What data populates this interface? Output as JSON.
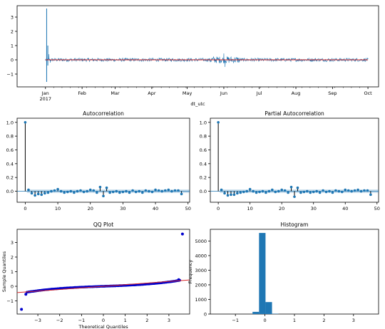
{
  "chart_data": [
    {
      "id": "timeseries",
      "type": "line",
      "title": "",
      "xlabel": "dt_utc",
      "ylabel": "",
      "ylim": [
        -1.9,
        3.8
      ],
      "yticks": [
        -1,
        0,
        1,
        2,
        3
      ],
      "xticks": [
        {
          "label": "Jan\n2017",
          "x": "2017-01-01"
        },
        {
          "label": "Feb",
          "x": "2017-02-01"
        },
        {
          "label": "Mar",
          "x": "2017-03-01"
        },
        {
          "label": "Apr",
          "x": "2017-04-01"
        },
        {
          "label": "May",
          "x": "2017-05-01"
        },
        {
          "label": "Jun",
          "x": "2017-06-01"
        },
        {
          "label": "Jul",
          "x": "2017-07-01"
        },
        {
          "label": "Aug",
          "x": "2017-08-01"
        },
        {
          "label": "Sep",
          "x": "2017-09-01"
        },
        {
          "label": "Oct",
          "x": "2017-10-01"
        }
      ],
      "xlim": [
        "2016-12-08",
        "2017-10-10"
      ],
      "series": [
        {
          "color": "#1f77b4",
          "description": "residual series, near 0 with spikes",
          "points": [
            {
              "x": "2017-01-01",
              "y": 0.0
            },
            {
              "x": "2017-01-02",
              "y": 3.6
            },
            {
              "x": "2017-01-02",
              "y": -1.55
            },
            {
              "x": "2017-01-03",
              "y": 1.0
            },
            {
              "x": "2017-01-03",
              "y": -0.4
            },
            {
              "x": "2017-01-04",
              "y": 0.4
            },
            {
              "x": "2017-01-05",
              "y": -0.2
            },
            {
              "x": "2017-06-01",
              "y": 0.45
            },
            {
              "x": "2017-06-02",
              "y": -0.5
            },
            {
              "x": "2017-10-01",
              "y": 0.05
            }
          ],
          "noise_amplitude": 0.12
        },
        {
          "color": "#d62728",
          "description": "rolling mean, ~0",
          "y": 0.0
        }
      ]
    },
    {
      "id": "acf",
      "type": "stem",
      "title": "Autocorrelation",
      "xlim": [
        -2.5,
        50.5
      ],
      "ylim": [
        -0.16,
        1.06
      ],
      "xticks": [
        0,
        10,
        20,
        30,
        40,
        50
      ],
      "yticks": [
        0.0,
        0.2,
        0.4,
        0.6,
        0.8,
        1.0
      ],
      "lags": [
        0,
        1,
        2,
        3,
        4,
        5,
        6,
        7,
        8,
        9,
        10,
        11,
        12,
        13,
        14,
        15,
        16,
        17,
        18,
        19,
        20,
        21,
        22,
        23,
        24,
        25,
        26,
        27,
        28,
        29,
        30,
        31,
        32,
        33,
        34,
        35,
        36,
        37,
        38,
        39,
        40,
        41,
        42,
        43,
        44,
        45,
        46,
        47,
        48
      ],
      "values": [
        1.0,
        0.02,
        -0.03,
        -0.06,
        -0.04,
        -0.05,
        -0.03,
        -0.02,
        0.0,
        0.01,
        0.03,
        0.0,
        -0.02,
        -0.01,
        0.0,
        -0.02,
        0.0,
        0.01,
        -0.01,
        0.0,
        0.02,
        0.01,
        -0.02,
        0.06,
        -0.07,
        0.05,
        -0.02,
        -0.01,
        0.0,
        -0.02,
        -0.01,
        0.0,
        -0.02,
        0.01,
        -0.01,
        0.0,
        -0.02,
        0.01,
        0.0,
        -0.01,
        0.02,
        0.01,
        0.0,
        0.01,
        0.02,
        0.0,
        0.01,
        0.01,
        -0.04
      ],
      "conf_band": 0.025
    },
    {
      "id": "pacf",
      "type": "stem",
      "title": "Partial Autocorrelation",
      "xlim": [
        -2.5,
        50.5
      ],
      "ylim": [
        -0.16,
        1.06
      ],
      "xticks": [
        0,
        10,
        20,
        30,
        40,
        50
      ],
      "yticks": [
        0.0,
        0.2,
        0.4,
        0.6,
        0.8,
        1.0
      ],
      "lags": [
        0,
        1,
        2,
        3,
        4,
        5,
        6,
        7,
        8,
        9,
        10,
        11,
        12,
        13,
        14,
        15,
        16,
        17,
        18,
        19,
        20,
        21,
        22,
        23,
        24,
        25,
        26,
        27,
        28,
        29,
        30,
        31,
        32,
        33,
        34,
        35,
        36,
        37,
        38,
        39,
        40,
        41,
        42,
        43,
        44,
        45,
        46,
        47,
        48
      ],
      "values": [
        1.0,
        0.02,
        -0.03,
        -0.06,
        -0.05,
        -0.05,
        -0.03,
        -0.02,
        -0.01,
        0.0,
        0.03,
        0.0,
        -0.02,
        -0.01,
        0.0,
        -0.02,
        0.0,
        0.02,
        -0.01,
        0.0,
        0.02,
        0.01,
        -0.02,
        0.06,
        -0.08,
        0.05,
        -0.02,
        -0.01,
        0.0,
        -0.02,
        -0.01,
        0.0,
        -0.02,
        0.01,
        -0.01,
        0.0,
        -0.02,
        0.01,
        0.0,
        -0.01,
        0.02,
        0.01,
        0.0,
        0.01,
        0.02,
        0.0,
        0.01,
        0.01,
        -0.05
      ],
      "conf_band": 0.025
    },
    {
      "id": "qq",
      "type": "scatter",
      "title": "QQ Plot",
      "xlabel": "Theoretical Quantiles",
      "ylabel": "Sample Quantiles",
      "xlim": [
        -3.95,
        3.95
      ],
      "ylim": [
        -1.9,
        3.9
      ],
      "xticks": [
        -3,
        -2,
        -1,
        0,
        1,
        2,
        3
      ],
      "yticks": [
        -1,
        0,
        1,
        2,
        3
      ],
      "outliers": [
        {
          "x": -3.75,
          "y": -1.58
        },
        {
          "x": 3.62,
          "y": 3.58
        },
        {
          "x": 3.45,
          "y": 0.45
        },
        {
          "x": -3.55,
          "y": -0.55
        }
      ],
      "reference_line": {
        "slope": 0.11,
        "intercept": 0.0,
        "color": "#d62728"
      },
      "marker_color": "#0000cc"
    },
    {
      "id": "hist",
      "type": "bar",
      "title": "Histogram",
      "xlabel": "",
      "ylabel": "Frequency",
      "xlim": [
        -1.85,
        3.85
      ],
      "ylim": [
        0,
        5800
      ],
      "xticks": [
        -1,
        0,
        1,
        2,
        3
      ],
      "yticks": [
        0,
        1000,
        2000,
        3000,
        4000,
        5000
      ],
      "bins": [
        {
          "x0": -0.42,
          "x1": -0.2,
          "value": 150
        },
        {
          "x0": -0.2,
          "x1": 0.02,
          "value": 5550
        },
        {
          "x0": 0.02,
          "x1": 0.24,
          "value": 820
        },
        {
          "x0": 0.24,
          "x1": 0.46,
          "value": 20
        }
      ],
      "color": "#1f77b4"
    }
  ]
}
